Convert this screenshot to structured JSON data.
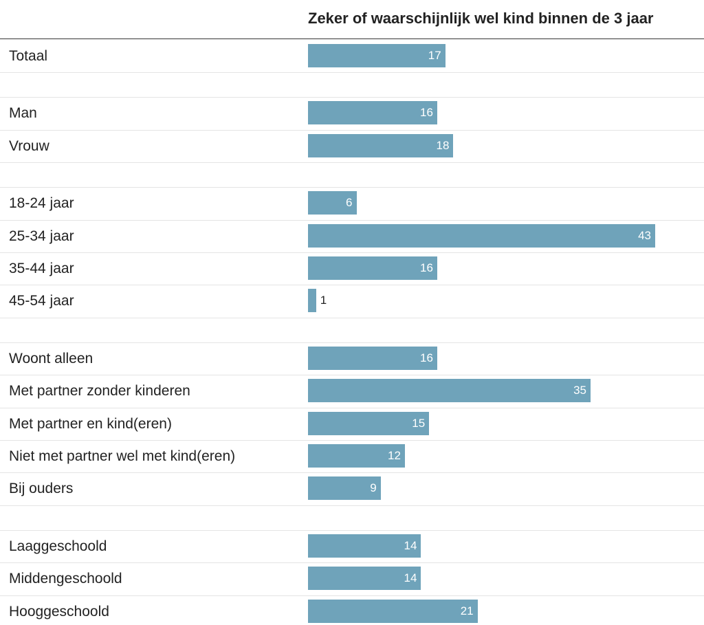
{
  "chart_data": {
    "type": "bar",
    "orientation": "horizontal",
    "title": "Zeker of waarschijnlijk wel kind binnen de 3 jaar",
    "bar_color": "#6fa3ba",
    "xlim": [
      0,
      43
    ],
    "groups": [
      {
        "categories": [
          "Totaal"
        ],
        "values": [
          17
        ]
      },
      {
        "categories": [
          "Man",
          "Vrouw"
        ],
        "values": [
          16,
          18
        ]
      },
      {
        "categories": [
          "18-24 jaar",
          "25-34 jaar",
          "35-44 jaar",
          "45-54 jaar"
        ],
        "values": [
          6,
          43,
          16,
          1
        ]
      },
      {
        "categories": [
          "Woont alleen",
          "Met partner zonder kinderen",
          "Met partner en kind(eren)",
          "Niet met partner wel met kind(eren)",
          "Bij ouders"
        ],
        "values": [
          16,
          35,
          15,
          12,
          9
        ]
      },
      {
        "categories": [
          "Laaggeschoold",
          "Middengeschoold",
          "Hooggeschoold"
        ],
        "values": [
          14,
          14,
          21
        ]
      }
    ]
  }
}
